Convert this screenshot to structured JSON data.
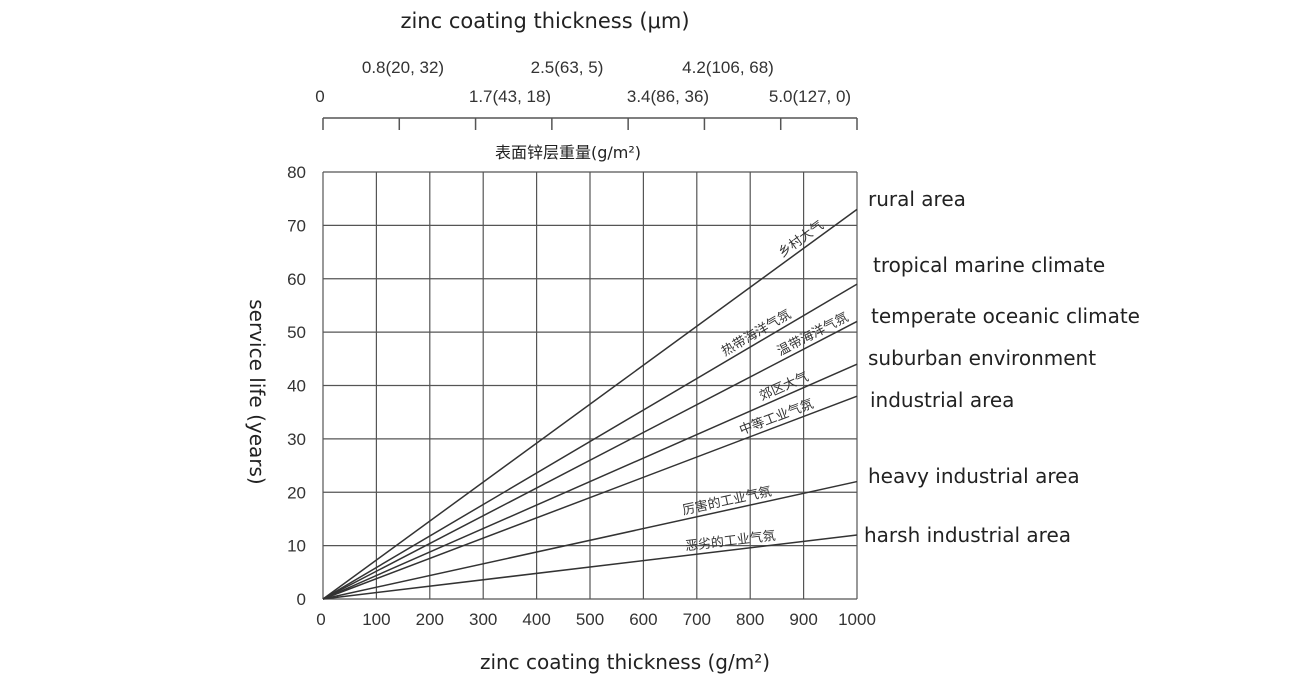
{
  "chart_data": {
    "type": "line",
    "title": "",
    "xlabel": "zinc coating thickness (g/m²)",
    "ylabel": "service life (years)",
    "xlim": [
      0,
      1000
    ],
    "ylim": [
      0,
      80
    ],
    "grid": true,
    "x_ticks": [
      "0",
      "100",
      "200",
      "300",
      "400",
      "500",
      "600",
      "700",
      "800",
      "900",
      "1000"
    ],
    "y_ticks": [
      "0",
      "10",
      "20",
      "30",
      "40",
      "50",
      "60",
      "70",
      "80"
    ],
    "top_axis": {
      "title": "zinc coating thickness (μm)",
      "subtitle_cn": "表面锌层重量(g/m²)",
      "labels_upper": [
        "0.8(20, 32)",
        "2.5(63, 5)",
        "4.2(106, 68)"
      ],
      "labels_lower": [
        "0",
        "1.7(43, 18)",
        "3.4(86, 36)",
        "5.0(127, 0)"
      ]
    },
    "series": [
      {
        "name": "rural area",
        "label_cn": "乡村大气",
        "x": [
          0,
          1000
        ],
        "y": [
          0,
          73
        ]
      },
      {
        "name": "tropical marine climate",
        "label_cn": "热带海洋气氛",
        "x": [
          0,
          1000
        ],
        "y": [
          0,
          59
        ]
      },
      {
        "name": "temperate oceanic climate",
        "label_cn": "温带海洋气氛",
        "x": [
          0,
          1000
        ],
        "y": [
          0,
          52
        ]
      },
      {
        "name": "suburban environment",
        "label_cn": "郊区大气",
        "x": [
          0,
          1000
        ],
        "y": [
          0,
          44
        ]
      },
      {
        "name": "industrial area",
        "label_cn": "中等工业气氛",
        "x": [
          0,
          1000
        ],
        "y": [
          0,
          38
        ]
      },
      {
        "name": "heavy industrial area",
        "label_cn": "厉害的工业气氛",
        "x": [
          0,
          1000
        ],
        "y": [
          0,
          22
        ]
      },
      {
        "name": "harsh industrial area",
        "label_cn": "恶劣的工业气氛",
        "x": [
          0,
          1000
        ],
        "y": [
          0,
          12
        ]
      }
    ],
    "colors": {
      "line": "#333333",
      "grid": "#555555"
    }
  }
}
